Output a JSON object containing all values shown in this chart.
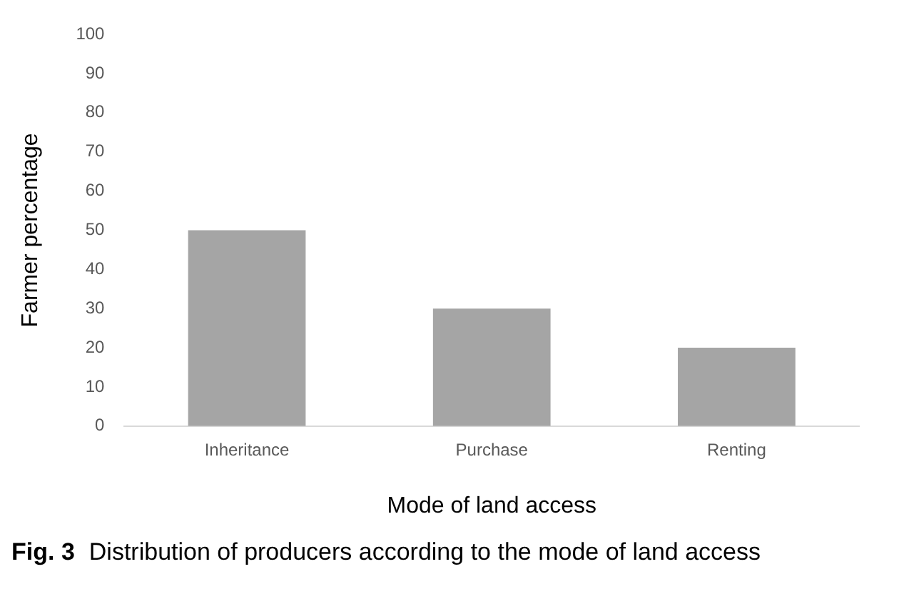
{
  "chart_data": {
    "type": "bar",
    "categories": [
      "Inheritance",
      "Purchase",
      "Renting"
    ],
    "values": [
      50,
      30,
      20
    ],
    "color": "#a5a5a5",
    "xlabel": "Mode of land access",
    "ylabel": "Farmer percentage",
    "ylim": [
      0,
      100
    ],
    "yticks": [
      0,
      10,
      20,
      30,
      40,
      50,
      60,
      70,
      80,
      90,
      100
    ],
    "grid": false,
    "legend": false,
    "annotations": [
      "Fig. 3",
      "Distribution of producers according to the mode of land access"
    ]
  }
}
